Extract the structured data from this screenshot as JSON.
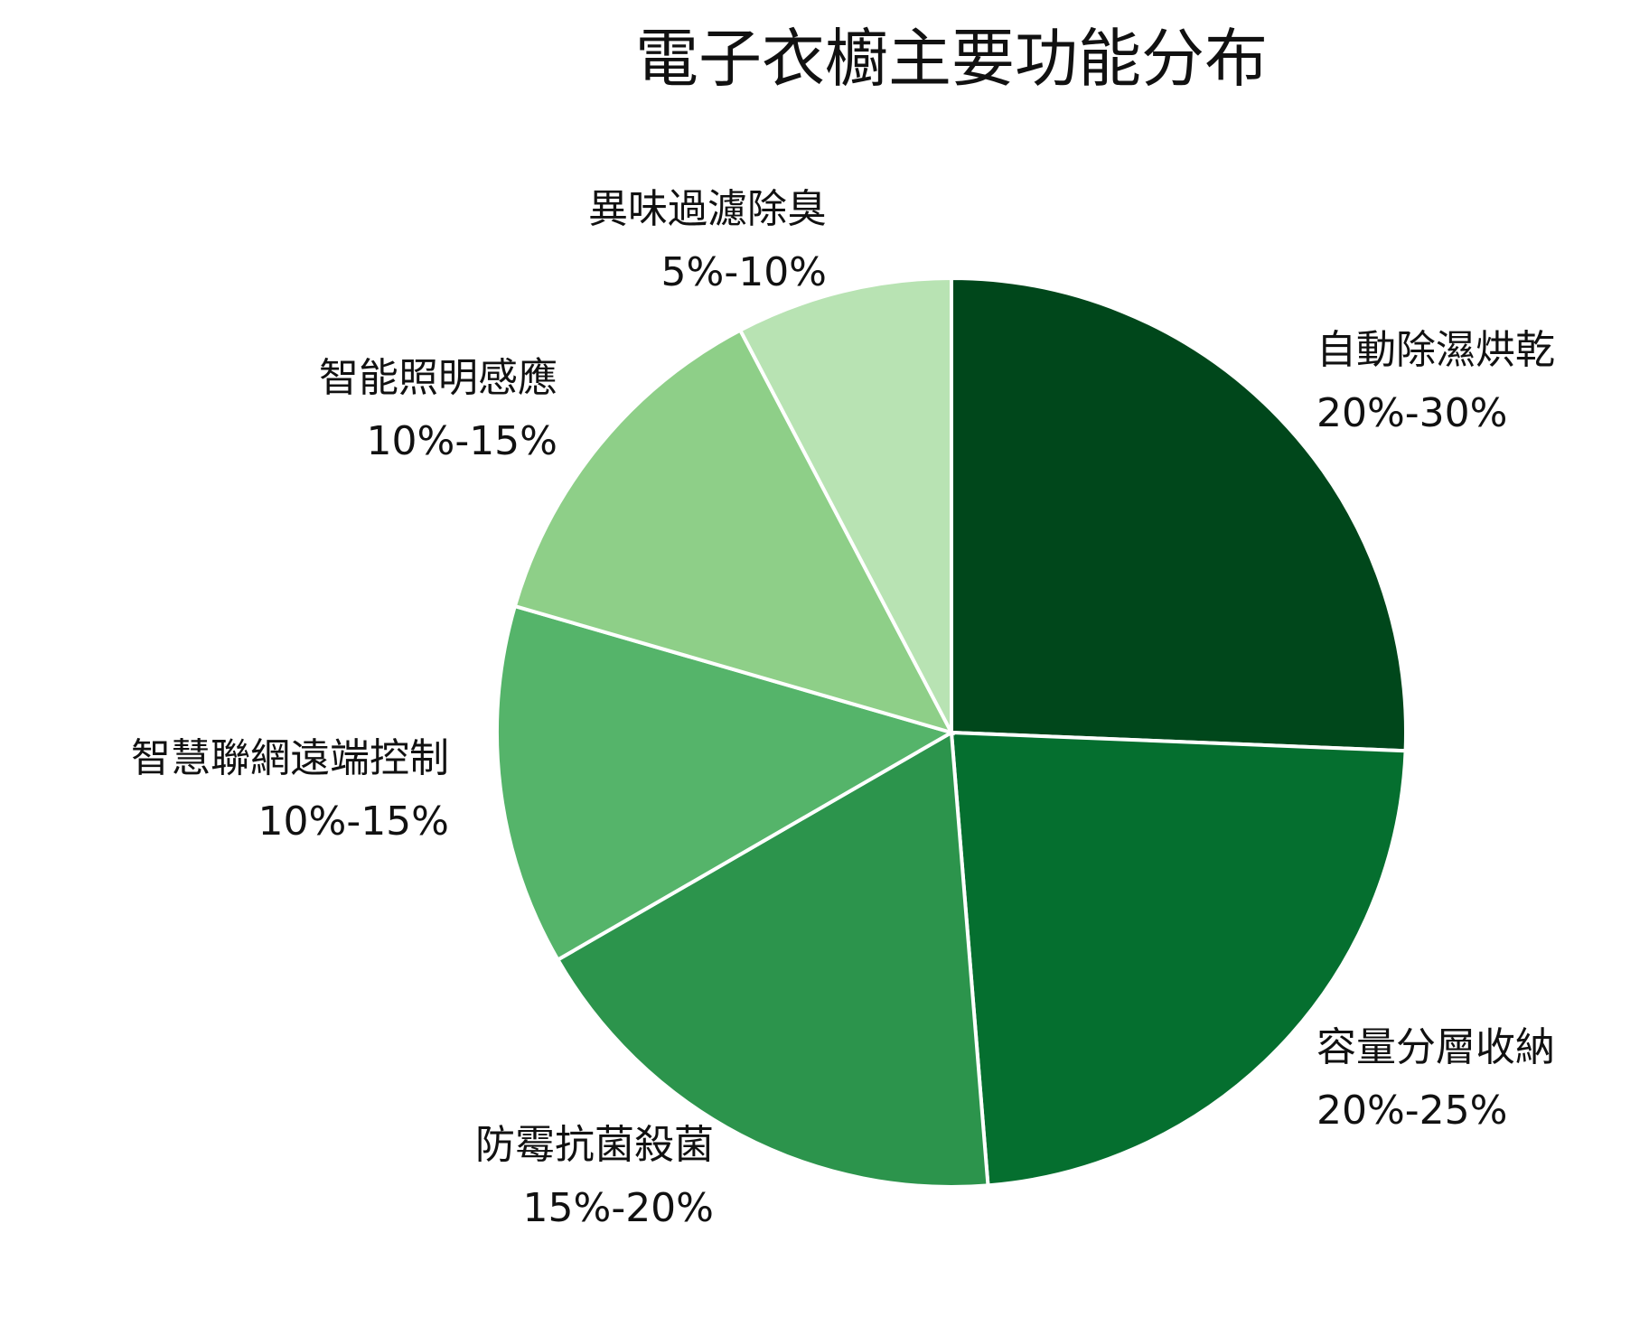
{
  "chart_data": {
    "type": "pie",
    "title": "電子衣櫥主要功能分布",
    "categories": [
      "自動除濕烘乾",
      "容量分層收納",
      "防霉抗菌殺菌",
      "智慧聯網遠端控制",
      "智能照明感應",
      "異味過濾除臭"
    ],
    "values": [
      25,
      22.5,
      17.5,
      12.5,
      12.5,
      7.5
    ],
    "value_labels": [
      "20%-30%",
      "20%-25%",
      "15%-20%",
      "10%-15%",
      "10%-15%",
      "5%-10%"
    ],
    "colors": [
      "#00471b",
      "#056f2f",
      "#2c944c",
      "#55b46a",
      "#8ecf88",
      "#b8e3b3"
    ]
  }
}
